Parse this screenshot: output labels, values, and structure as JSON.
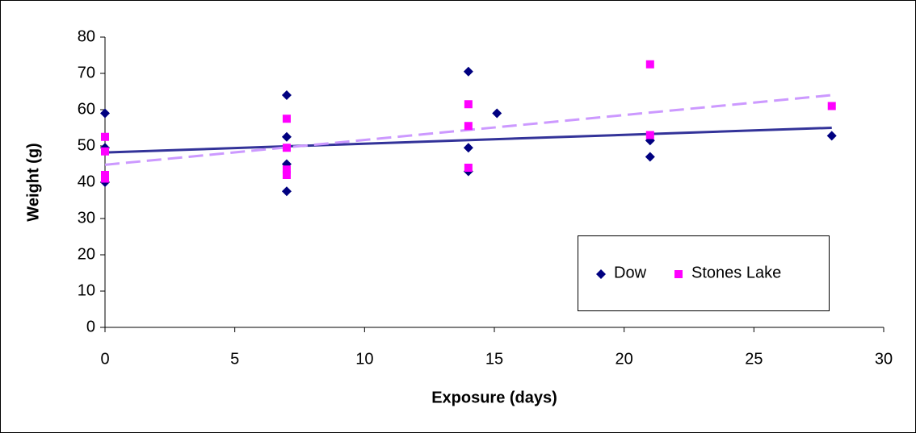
{
  "chart_data": {
    "type": "scatter",
    "x_label": "Exposure (days)",
    "y_label": "Weight (g)",
    "xlim": [
      0,
      30
    ],
    "xticks": [
      0,
      5,
      10,
      15,
      20,
      25,
      30
    ],
    "ylim": [
      0,
      80
    ],
    "yticks": [
      0,
      10,
      20,
      30,
      40,
      50,
      60,
      70,
      80
    ],
    "grid": false,
    "legend_position": "lower right",
    "series": [
      {
        "name": "Dow",
        "color": "#000080",
        "marker": "diamond",
        "x": [
          0,
          0,
          0,
          7,
          7,
          7,
          7,
          14,
          14,
          14,
          15.1,
          21,
          21,
          28
        ],
        "values": [
          59,
          49.5,
          40,
          64,
          52.5,
          45,
          37.5,
          70.5,
          49.5,
          43,
          59,
          51.5,
          47,
          52.8
        ],
        "trendline": {
          "x": [
            0,
            28
          ],
          "values": [
            48.2,
            55
          ],
          "dash": "solid",
          "color": "#333399"
        }
      },
      {
        "name": "Stones Lake",
        "color": "#ff00ff",
        "marker": "square",
        "x": [
          0,
          0,
          0,
          0,
          7,
          7,
          7,
          7,
          14,
          14,
          14,
          21,
          21,
          28
        ],
        "values": [
          52.5,
          48.5,
          42,
          41,
          57.5,
          49.5,
          43.5,
          42,
          61.5,
          55.5,
          44,
          72.5,
          53,
          61
        ],
        "trendline": {
          "x": [
            0,
            28
          ],
          "values": [
            44.8,
            64
          ],
          "dash": "dashed",
          "color": "#cc99ff"
        }
      }
    ]
  }
}
